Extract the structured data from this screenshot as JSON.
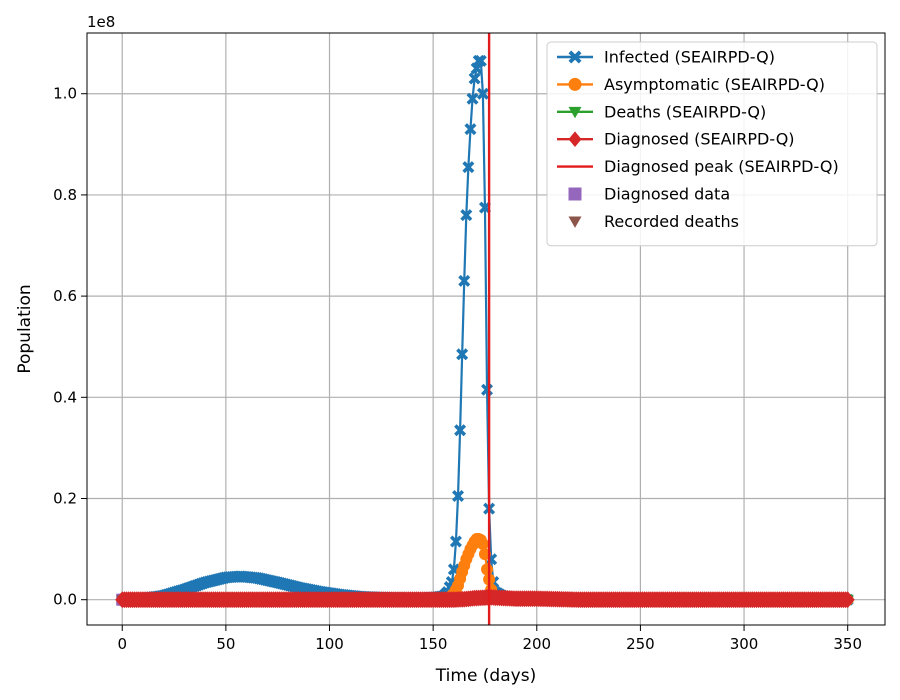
{
  "chart_data": {
    "type": "line",
    "title": "",
    "xlabel": "Time (days)",
    "ylabel": "Population",
    "y_offset_text": "1e8",
    "xlim": [
      -17,
      368
    ],
    "ylim": [
      -0.05,
      1.12
    ],
    "y_scale_multiplier": 100000000,
    "x_ticks": [
      0,
      50,
      100,
      150,
      200,
      250,
      300,
      350
    ],
    "x_tick_labels": [
      "0",
      "50",
      "100",
      "150",
      "200",
      "250",
      "300",
      "350"
    ],
    "y_ticks": [
      0.0,
      0.2,
      0.4,
      0.6,
      0.8,
      1.0
    ],
    "y_tick_labels": [
      "0.0",
      "0.2",
      "0.4",
      "0.6",
      "0.8",
      "1.0"
    ],
    "grid": true,
    "legend_position": "top-right",
    "vline": {
      "name": "Diagnosed peak (SEAIRPD-Q)",
      "x": 177,
      "color": "#e31a1c"
    },
    "series": [
      {
        "name": "Infected (SEAIRPD-Q)",
        "color": "#1f77b4",
        "marker": "x",
        "x": [
          0,
          10,
          20,
          30,
          40,
          50,
          57,
          65,
          75,
          85,
          95,
          105,
          115,
          125,
          135,
          145,
          150,
          155,
          157,
          159,
          160,
          161,
          162,
          163,
          164,
          165,
          166,
          167,
          168,
          169,
          170,
          171,
          172,
          173,
          174,
          175,
          176,
          177,
          178,
          179,
          180,
          185,
          190,
          200,
          220,
          250,
          300,
          350
        ],
        "y": [
          0.0,
          0.002,
          0.008,
          0.02,
          0.034,
          0.044,
          0.046,
          0.043,
          0.034,
          0.024,
          0.016,
          0.01,
          0.006,
          0.004,
          0.003,
          0.003,
          0.004,
          0.007,
          0.015,
          0.035,
          0.06,
          0.115,
          0.205,
          0.335,
          0.485,
          0.63,
          0.76,
          0.855,
          0.93,
          0.99,
          1.03,
          1.05,
          1.065,
          1.065,
          1.0,
          0.775,
          0.415,
          0.18,
          0.08,
          0.035,
          0.015,
          0.004,
          0.002,
          0.001,
          0.0,
          0.0,
          0.0,
          0.0
        ]
      },
      {
        "name": "Asymptomatic (SEAIRPD-Q)",
        "color": "#ff7f0e",
        "marker": "o",
        "x": [
          0,
          50,
          100,
          150,
          155,
          158,
          160,
          162,
          164,
          166,
          168,
          170,
          171,
          172,
          173,
          174,
          175,
          176,
          177,
          178,
          179,
          180,
          185,
          200,
          250,
          300,
          350
        ],
        "y": [
          0.0,
          0.0,
          0.0,
          0.0,
          0.001,
          0.005,
          0.012,
          0.028,
          0.055,
          0.08,
          0.1,
          0.115,
          0.12,
          0.12,
          0.118,
          0.11,
          0.09,
          0.06,
          0.04,
          0.02,
          0.008,
          0.004,
          0.001,
          0.0,
          0.0,
          0.0,
          0.0
        ]
      },
      {
        "name": "Deaths (SEAIRPD-Q)",
        "color": "#2ca02c",
        "marker": "v",
        "x": [
          0,
          50,
          100,
          150,
          160,
          170,
          175,
          180,
          190,
          200,
          250,
          300,
          350
        ],
        "y": [
          0.0,
          0.0,
          0.0,
          0.0,
          0.0,
          0.0,
          0.001,
          0.001,
          0.001,
          0.001,
          0.001,
          0.001,
          0.001
        ]
      },
      {
        "name": "Diagnosed (SEAIRPD-Q)",
        "color": "#d62728",
        "marker": "D",
        "x": [
          0,
          25,
          50,
          75,
          100,
          125,
          150,
          160,
          165,
          170,
          175,
          177,
          180,
          185,
          190,
          200,
          210,
          220,
          250,
          300,
          350
        ],
        "y": [
          0.0,
          0.0,
          0.0,
          0.0,
          0.0,
          0.0,
          0.0,
          0.0,
          0.001,
          0.003,
          0.004,
          0.005,
          0.004,
          0.003,
          0.002,
          0.002,
          0.001,
          0.0,
          0.0,
          0.0,
          0.0
        ]
      },
      {
        "name": "Diagnosed data",
        "color": "#9467bd",
        "marker": "s",
        "line": false,
        "x": [
          0,
          5,
          10,
          15,
          20,
          25,
          30,
          35,
          40,
          45,
          50,
          53
        ],
        "y": [
          0.0,
          0.0,
          0.0,
          0.0,
          0.0,
          0.0,
          0.0,
          0.0,
          0.0,
          0.0,
          0.0,
          0.0
        ]
      },
      {
        "name": "Recorded deaths",
        "color": "#8c564b",
        "marker": "v",
        "line": false,
        "x": [
          0,
          5,
          10,
          15,
          20,
          25,
          30,
          35,
          40,
          45,
          50,
          53
        ],
        "y": [
          0.0,
          0.0,
          0.0,
          0.0,
          0.0,
          0.0,
          0.0,
          0.0,
          0.0,
          0.0,
          0.0,
          0.0
        ]
      }
    ]
  }
}
